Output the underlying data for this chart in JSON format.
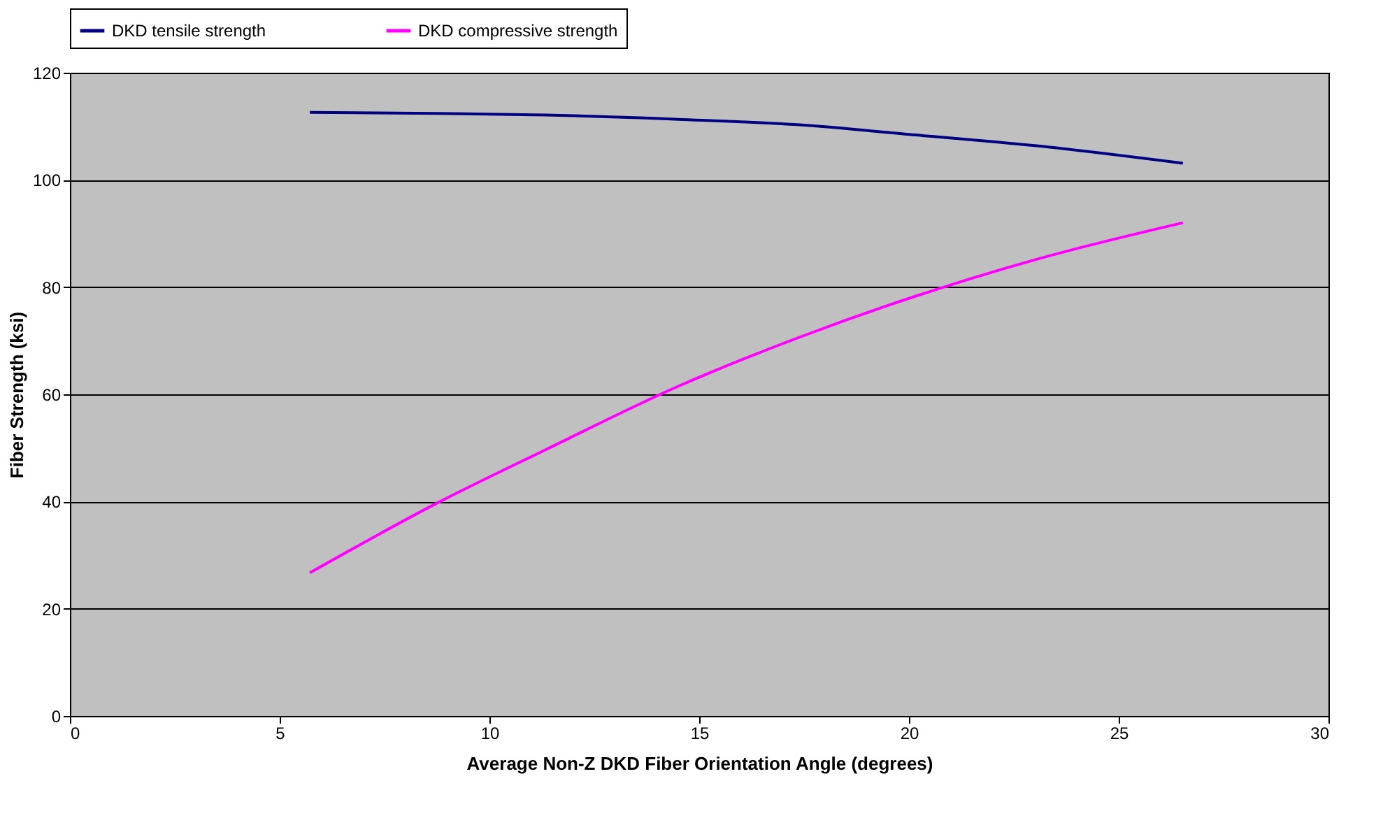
{
  "chart_data": {
    "type": "line",
    "xlabel": "Average Non-Z DKD Fiber Orientation Angle (degrees)",
    "ylabel": "Fiber Strength (ksi)",
    "x": [
      5.72,
      8.75,
      11.35,
      14.5,
      17.34,
      20,
      23,
      26.53
    ],
    "series": [
      {
        "name": "DKD tensile strength",
        "color": "#000080",
        "values": [
          112.6,
          112.4,
          112.1,
          111.3,
          110.3,
          108.5,
          106.4,
          103.1
        ]
      },
      {
        "name": "DKD compressive strength",
        "color": "#ff00ff",
        "values": [
          26.7,
          39.7,
          49.7,
          61.5,
          70.5,
          77.9,
          85.1,
          92
        ]
      }
    ],
    "xlim": [
      0,
      30
    ],
    "xticks": [
      0,
      5,
      10,
      15,
      20,
      25,
      30
    ],
    "ylim": [
      0,
      120
    ],
    "yticks": [
      0,
      20,
      40,
      60,
      80,
      100,
      120
    ],
    "grid": "y",
    "legend": "top",
    "marker": "none",
    "line_style": "solid"
  }
}
